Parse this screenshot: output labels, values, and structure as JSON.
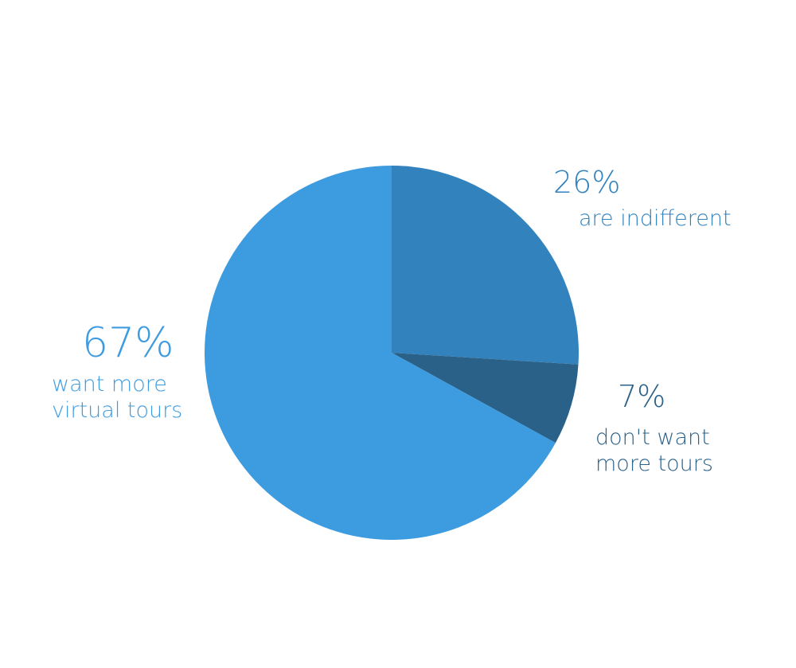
{
  "chart_data": {
    "type": "pie",
    "categories": [
      "are indifferent",
      "don't want more tours",
      "want more virtual tours"
    ],
    "values": [
      26,
      7,
      67
    ],
    "value_labels": [
      "26%",
      "7%",
      "67%"
    ],
    "colors": [
      "#3282bd",
      "#2a6188",
      "#3d9be0"
    ]
  }
}
